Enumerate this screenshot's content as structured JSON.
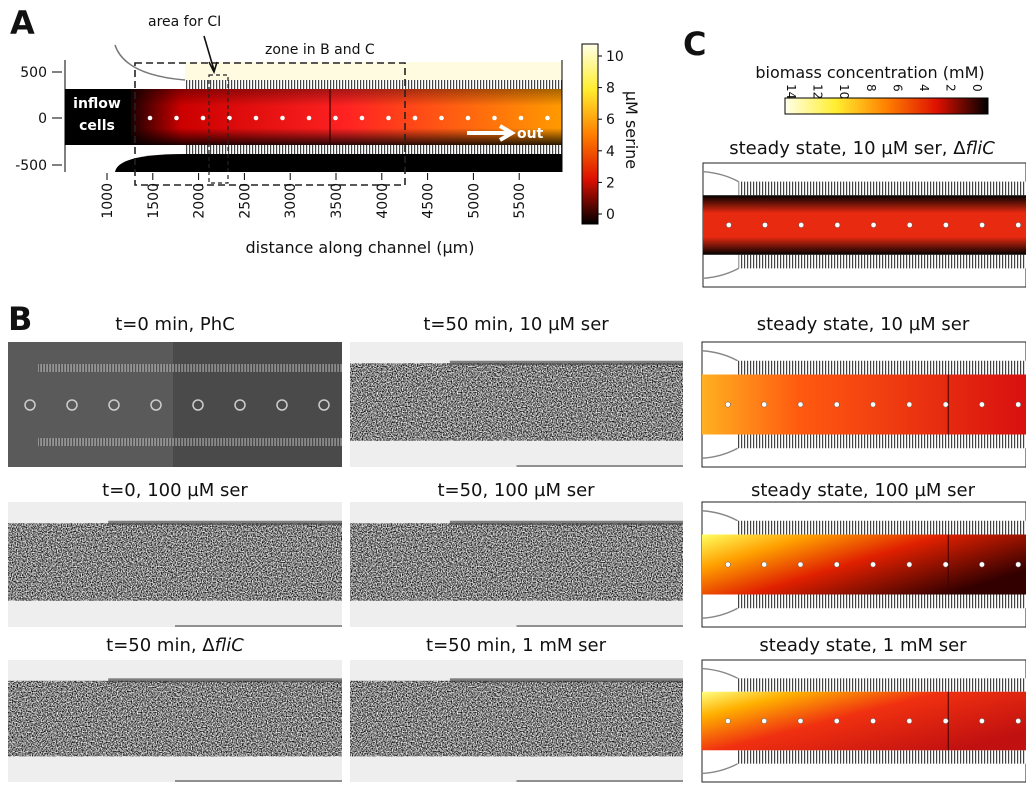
{
  "panel_labels": [
    "A",
    "B",
    "C"
  ],
  "panel_a": {
    "annotations": {
      "area": "area for CI",
      "zone": "zone in B and C",
      "inflow": "inflow",
      "cells": "cells",
      "out": "out"
    },
    "y_ticks": [
      500,
      0,
      -500
    ],
    "x_ticks": [
      1000,
      1500,
      2000,
      2500,
      3000,
      3500,
      4000,
      4500,
      5000,
      5500
    ],
    "x_label": "distance along channel (µm)",
    "colorbar_ticks": [
      10,
      8,
      6,
      4,
      2,
      0
    ],
    "colorbar_label": "µM serine"
  },
  "panel_b": {
    "rows": [
      [
        {
          "text": "t=0 min, PhC"
        },
        {
          "text": "t=50 min, 10 µM ser"
        },
        {
          "text": "steady state, 10 µM ser"
        }
      ],
      [
        {
          "text": "t=0, 100 µM ser"
        },
        {
          "text": "t=50, 100 µM ser"
        },
        {
          "text": "steady state, 100 µM ser"
        }
      ],
      [
        {
          "text": "t=50 min, Δ",
          "italic": "fliC"
        },
        {
          "text": "t=50 min, 1 mM ser"
        },
        {
          "text": "steady state, 1 mM ser"
        }
      ]
    ]
  },
  "panel_c": {
    "colorbar_label": "biomass concentration (mM)",
    "colorbar_ticks": [
      14,
      12,
      10,
      8,
      6,
      4,
      2,
      0
    ],
    "title": {
      "text": "steady state, 10 µM ser, Δ",
      "italic": "fliC"
    }
  }
}
